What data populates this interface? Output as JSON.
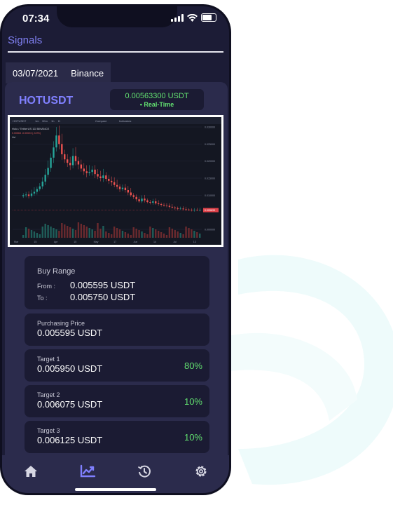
{
  "status": {
    "time": "07:34"
  },
  "header": {
    "title": "Signals"
  },
  "tab": {
    "date": "03/07/2021",
    "exchange": "Binance"
  },
  "signal": {
    "symbol": "HOTUSDT",
    "price": "0.00563300 USDT",
    "price_status": "• Real-Time"
  },
  "chart_toolbar": {
    "symbol": "HOTUSDT",
    "intervals": [
      "1m",
      "30m",
      "1h",
      "D"
    ],
    "compare": "Compare",
    "indicators": "Indicators",
    "legend": "Holo / TetherUS 1D BINANCE",
    "legend2": "0.00563 -0.00023 (-3.9%)",
    "vol": "Vol"
  },
  "chart_data": {
    "type": "candlestick",
    "title": "",
    "x_ticks": [
      "Mar",
      "15",
      "Apr",
      "15",
      "May",
      "17",
      "Jun",
      "14",
      "Jul",
      "13"
    ],
    "y_ticks": [
      "0.030000",
      "0.025000",
      "0.020000",
      "0.015000",
      "0.010000",
      "0.005633",
      "0.000000"
    ],
    "last_price_label": "0.005633",
    "close_series": [
      0.01,
      0.0102,
      0.0098,
      0.0105,
      0.011,
      0.0118,
      0.0126,
      0.014,
      0.016,
      0.018,
      0.021,
      0.024,
      0.0275,
      0.025,
      0.022,
      0.0205,
      0.0195,
      0.0188,
      0.0215,
      0.02,
      0.019,
      0.0178,
      0.017,
      0.0165,
      0.0168,
      0.0175,
      0.0162,
      0.0155,
      0.015,
      0.0158,
      0.0148,
      0.0142,
      0.0138,
      0.013,
      0.0125,
      0.0118,
      0.0122,
      0.0115,
      0.0108,
      0.01,
      0.0095,
      0.0088,
      0.0082,
      0.009,
      0.0085,
      0.008,
      0.0078,
      0.0082,
      0.0076,
      0.0074,
      0.0072,
      0.007,
      0.0069,
      0.0066,
      0.0064,
      0.0062,
      0.006,
      0.0061,
      0.0059,
      0.0058,
      0.0057,
      0.0056,
      0.0057,
      0.0056,
      0.005633
    ]
  },
  "buy_range": {
    "title": "Buy Range",
    "from_label": "From :",
    "from_value": "0.005595 USDT",
    "to_label": "To :",
    "to_value": "0.005750 USDT"
  },
  "purchasing": {
    "label": "Purchasing Price",
    "value": "0.005595 USDT"
  },
  "targets": [
    {
      "label": "Target 1",
      "value": "0.005950 USDT",
      "pct": "80%"
    },
    {
      "label": "Target 2",
      "value": "0.006075 USDT",
      "pct": "10%"
    },
    {
      "label": "Target 3",
      "value": "0.006125 USDT",
      "pct": "10%"
    }
  ],
  "nav": [
    "home-icon",
    "chart-icon",
    "history-icon",
    "settings-icon"
  ],
  "colors": {
    "accent": "#7f7ff0",
    "positive": "#62e070",
    "card": "#1b1b33",
    "panel": "#2b2b4c"
  }
}
